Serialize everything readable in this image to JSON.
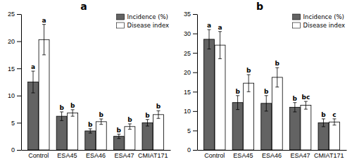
{
  "chart_data": [
    {
      "type": "bar",
      "title": "a",
      "categories": [
        "Control",
        "ESA45",
        "ESA46",
        "ESA47",
        "CMIAT171"
      ],
      "series": [
        {
          "name": "Incidence (%)",
          "color": "#636363",
          "values": [
            12.5,
            6.2,
            3.5,
            2.5,
            5.0
          ],
          "errors": [
            2.0,
            0.8,
            0.4,
            0.4,
            0.6
          ],
          "annotations": [
            "a",
            "b",
            "b",
            "b",
            "b"
          ]
        },
        {
          "name": "Disease index",
          "color": "#ffffff",
          "values": [
            20.3,
            6.8,
            5.2,
            4.3,
            6.5
          ],
          "errors": [
            2.8,
            0.6,
            0.5,
            0.5,
            0.7
          ],
          "annotations": [
            "a",
            "b",
            "b",
            "b",
            "b"
          ]
        }
      ],
      "ylim": [
        0,
        25
      ],
      "yticks": [
        0,
        5,
        10,
        15,
        20,
        25
      ],
      "grid": false,
      "legend": "upper right"
    },
    {
      "type": "bar",
      "title": "b",
      "categories": [
        "Control",
        "ESA45",
        "ESA46",
        "ESA47",
        "CMIAT171"
      ],
      "series": [
        {
          "name": "Incidence (%)",
          "color": "#636363",
          "values": [
            28.5,
            12.2,
            12.0,
            11.0,
            7.0
          ],
          "errors": [
            2.5,
            1.8,
            2.0,
            1.2,
            1.0
          ],
          "annotations": [
            "a",
            "b",
            "b",
            "b",
            "b"
          ]
        },
        {
          "name": "Disease index",
          "color": "#ffffff",
          "values": [
            27.0,
            17.2,
            18.7,
            11.5,
            7.2
          ],
          "errors": [
            3.5,
            2.2,
            2.5,
            1.0,
            0.8
          ],
          "annotations": [
            "a",
            "b",
            "b",
            "bc",
            "c"
          ]
        }
      ],
      "ylim": [
        0,
        35
      ],
      "yticks": [
        0,
        5,
        10,
        15,
        20,
        25,
        30,
        35
      ],
      "grid": false,
      "legend": "upper right"
    }
  ]
}
